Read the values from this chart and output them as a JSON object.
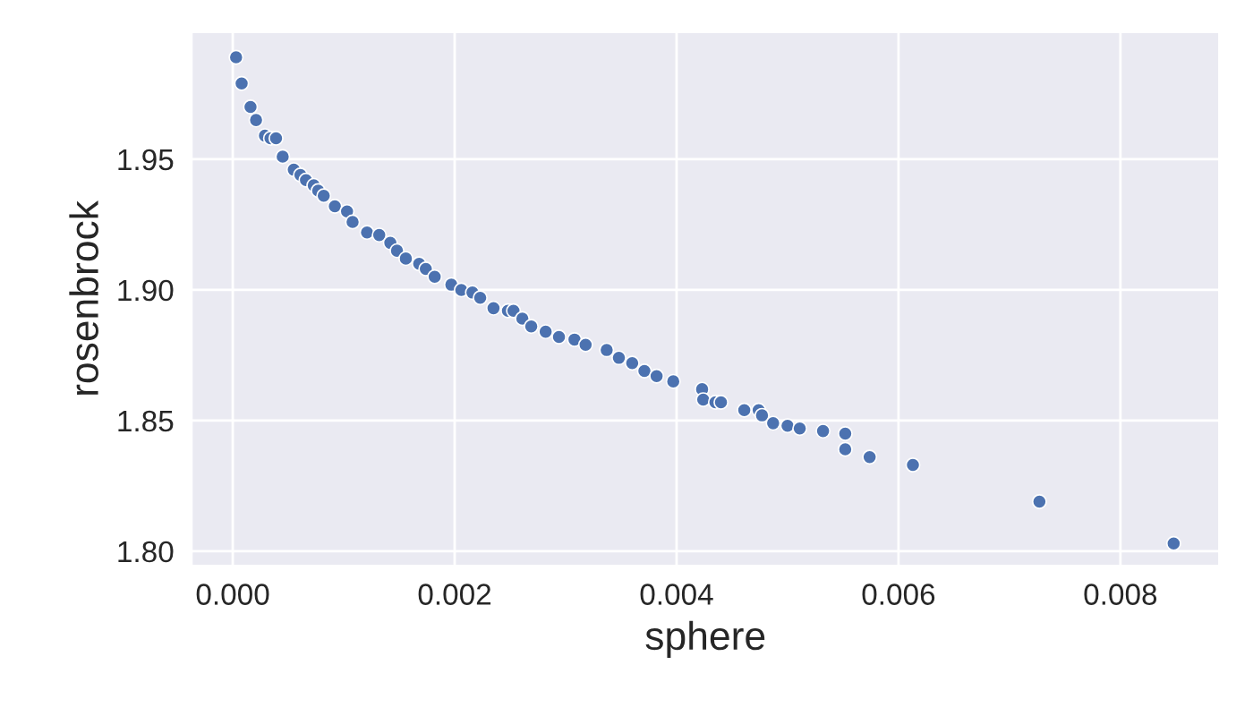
{
  "chart_data": {
    "type": "scatter",
    "xlabel": "sphere",
    "ylabel": "rosenbrock",
    "x": [
      3e-05,
      8e-05,
      0.00016,
      0.00021,
      0.00029,
      0.00034,
      0.00039,
      0.00045,
      0.00055,
      0.00061,
      0.00066,
      0.00073,
      0.00077,
      0.00082,
      0.00092,
      0.00103,
      0.00108,
      0.00121,
      0.00132,
      0.00142,
      0.00148,
      0.00156,
      0.00168,
      0.00174,
      0.00182,
      0.00197,
      0.00206,
      0.00216,
      0.00223,
      0.00235,
      0.00248,
      0.00253,
      0.00261,
      0.00269,
      0.00282,
      0.00294,
      0.00308,
      0.00318,
      0.00337,
      0.00348,
      0.0036,
      0.00371,
      0.00382,
      0.00397,
      0.00423,
      0.00424,
      0.00435,
      0.0044,
      0.00461,
      0.00474,
      0.00477,
      0.00487,
      0.005,
      0.00511,
      0.00532,
      0.00552,
      0.00552,
      0.00574,
      0.00613,
      0.00727,
      0.00848
    ],
    "series": [
      {
        "color": "#4c72b0",
        "values": [
          1.989,
          1.979,
          1.97,
          1.965,
          1.959,
          1.958,
          1.958,
          1.951,
          1.946,
          1.944,
          1.942,
          1.94,
          1.938,
          1.936,
          1.932,
          1.93,
          1.926,
          1.922,
          1.921,
          1.918,
          1.915,
          1.912,
          1.91,
          1.908,
          1.905,
          1.902,
          1.9,
          1.899,
          1.897,
          1.893,
          1.892,
          1.892,
          1.889,
          1.886,
          1.884,
          1.882,
          1.881,
          1.879,
          1.877,
          1.874,
          1.872,
          1.869,
          1.867,
          1.865,
          1.862,
          1.858,
          1.857,
          1.857,
          1.854,
          1.854,
          1.852,
          1.849,
          1.848,
          1.847,
          1.846,
          1.845,
          1.839,
          1.836,
          1.833,
          1.819,
          1.803
        ]
      }
    ],
    "xlim": [
      -0.00037,
      0.00889
    ],
    "ylim": [
      1.7945,
      1.9986
    ],
    "xticks": [
      {
        "value": 0,
        "label": "0.000"
      },
      {
        "value": 0.002,
        "label": "0.002"
      },
      {
        "value": 0.004,
        "label": "0.004"
      },
      {
        "value": 0.006,
        "label": "0.006"
      },
      {
        "value": 0.008,
        "label": "0.008"
      }
    ],
    "yticks": [
      {
        "value": 1.8,
        "label": "1.80"
      },
      {
        "value": 1.85,
        "label": "1.85"
      },
      {
        "value": 1.9,
        "label": "1.90"
      },
      {
        "value": 1.95,
        "label": "1.95"
      }
    ],
    "grid": true,
    "marker": "circle"
  }
}
